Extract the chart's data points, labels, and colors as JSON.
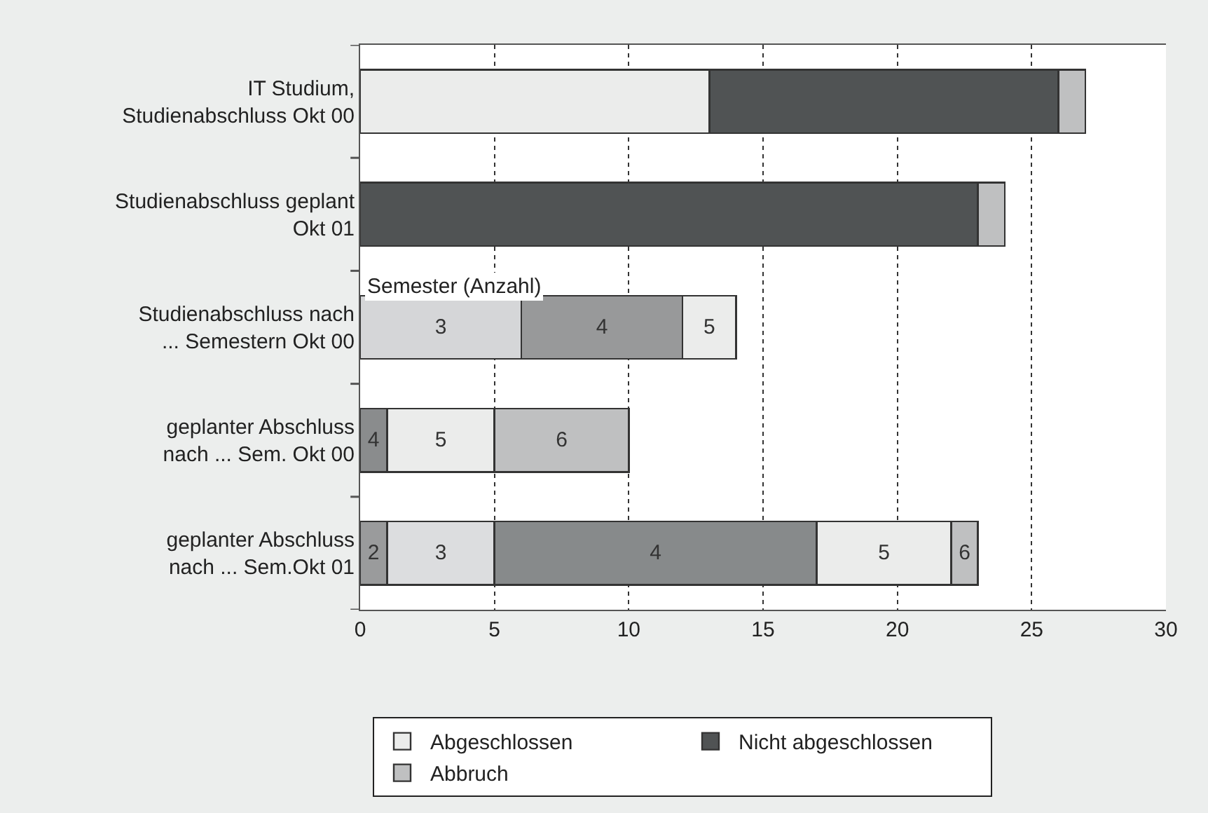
{
  "chart_data": {
    "type": "bar",
    "orientation": "horizontal",
    "stacked": true,
    "categories": [
      "IT Studium,\nStudienabschluss Okt 00",
      "Studienabschluss geplant\nOkt 01",
      "Studienabschluss nach\n... Semestern Okt 00",
      "geplanter Abschluss\nnach ... Sem. Okt 00",
      "geplanter Abschluss\nnach ... Sem.Okt 01"
    ],
    "series": [
      {
        "name": "Abgeschlossen",
        "color": "#ebeceb",
        "values": [
          13,
          null,
          null,
          null,
          null
        ]
      },
      {
        "name": "Nicht abgeschlossen",
        "color": "#505354",
        "values": [
          13,
          23,
          null,
          null,
          null
        ]
      },
      {
        "name": "Abbruch",
        "color": "#bfc0c1",
        "values": [
          1,
          1,
          null,
          null,
          null
        ]
      },
      {
        "name": "2",
        "color": "#9a9b9c",
        "colors": [
          null,
          null,
          null,
          null,
          "#9a9b9c"
        ],
        "values": [
          null,
          null,
          null,
          null,
          1
        ]
      },
      {
        "name": "3",
        "color": "#d8d9db",
        "colors": [
          null,
          null,
          "#d5d6d8",
          null,
          "#dcdddf"
        ],
        "values": [
          null,
          null,
          6,
          null,
          4
        ]
      },
      {
        "name": "4",
        "color": "#8a8c8d",
        "colors": [
          null,
          null,
          "#98999a",
          "#8a8c8d",
          "#878a8b"
        ],
        "values": [
          null,
          null,
          6,
          1,
          12
        ]
      },
      {
        "name": "5",
        "color": "#ebeceb",
        "colors": [
          null,
          null,
          "#ebeceb",
          "#ebeceb",
          "#ebeceb"
        ],
        "values": [
          null,
          null,
          2,
          4,
          5
        ]
      },
      {
        "name": "6",
        "color": "#bfc0c1",
        "colors": [
          null,
          null,
          null,
          "#bfc0c1",
          "#bfc0c1"
        ],
        "values": [
          null,
          null,
          null,
          5,
          1
        ]
      }
    ],
    "xlim": [
      0,
      30
    ],
    "xticks": [
      0,
      5,
      10,
      15,
      20,
      25,
      30
    ],
    "grid": "x",
    "legend": "bottom",
    "annotations": [
      "Semester (Anzahl)"
    ]
  }
}
